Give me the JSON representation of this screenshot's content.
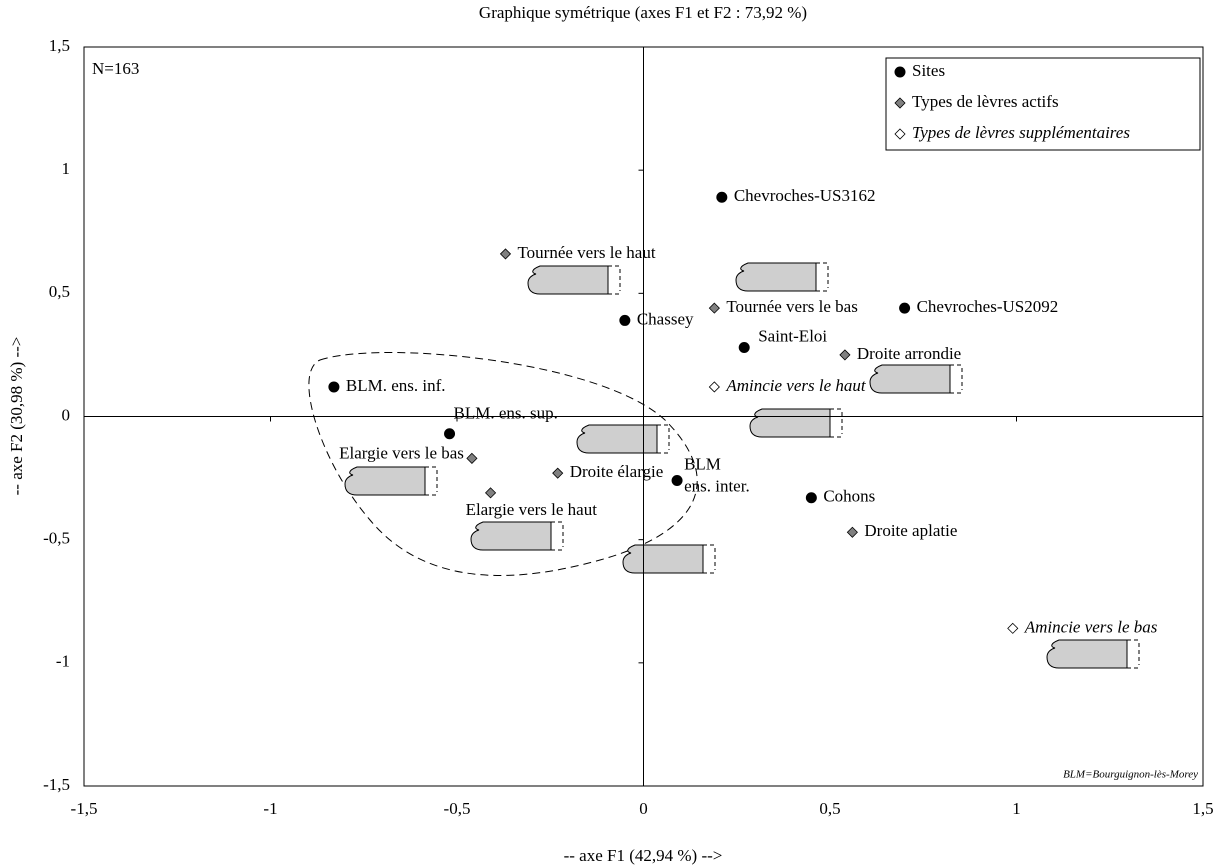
{
  "chart_data": {
    "type": "scatter",
    "title": "Graphique symétrique (axes F1 et F2 : 73,92 %)",
    "x_label": "-- axe F1 (42,94 %) -->",
    "y_label": "-- axe F2 (30,98 %) -->",
    "annotations": [
      "N=163",
      "BLM=Bourguignon-lès-Morey"
    ],
    "xlim": [
      -1.5,
      1.5
    ],
    "ylim": [
      -1.5,
      1.5
    ],
    "xticks": [
      {
        "value": -1.5,
        "label": "-1,5"
      },
      -1,
      {
        "value": -0.5,
        "label": "-0,5"
      },
      0,
      {
        "value": 0.5,
        "label": "0,5"
      },
      1,
      {
        "value": 1.5,
        "label": "1,5"
      }
    ],
    "yticks": [
      {
        "value": -1.5,
        "label": "-1,5"
      },
      -1,
      {
        "value": -0.5,
        "label": "-0,5"
      },
      0,
      {
        "value": 0.5,
        "label": "0,5"
      },
      1,
      {
        "value": 1.5,
        "label": "1,5"
      }
    ],
    "legend": "top-right",
    "series": [
      {
        "name": "Sites",
        "color": "#000000",
        "marker": "circle",
        "label_style": "normal",
        "labels": [
          "Chevroches-US3162",
          "Chevroches-US2092",
          "Chassey",
          "Saint-Eloi",
          "BLM. ens. inf.",
          "BLM. ens. sup.",
          [
            "BLM",
            "ens. inter."
          ],
          "Cohons"
        ],
        "x": [
          0.21,
          0.7,
          -0.05,
          0.27,
          -0.83,
          -0.52,
          0.09,
          0.45
        ],
        "values": [
          0.89,
          0.44,
          0.39,
          0.28,
          0.12,
          -0.07,
          -0.26,
          -0.33
        ]
      },
      {
        "name": "Types de lèvres actifs",
        "color": "#808080",
        "marker": "diamond",
        "label_style": "normal",
        "labels": [
          "Tournée vers le haut",
          "Tournée vers le bas",
          "Droite arrondie",
          "Elargie vers le bas",
          "Droite élargie",
          "Elargie vers le haut",
          "Droite aplatie"
        ],
        "x": [
          -0.37,
          0.19,
          0.54,
          -0.46,
          -0.23,
          -0.41,
          0.56
        ],
        "values": [
          0.66,
          0.44,
          0.25,
          -0.17,
          -0.23,
          -0.31,
          -0.47
        ]
      },
      {
        "name": "Types de lèvres supplémentaires",
        "color": "#ffffff",
        "marker": "diamond",
        "label_style": "italic",
        "labels": [
          "Amincie vers le haut",
          "Amincie vers le bas"
        ],
        "x": [
          0.19,
          0.99
        ],
        "values": [
          0.12,
          -0.86
        ]
      }
    ]
  }
}
